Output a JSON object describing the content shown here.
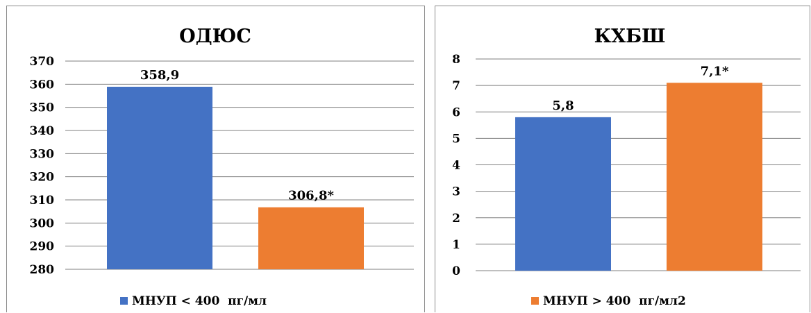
{
  "colors": {
    "blue": "#4472c4",
    "orange": "#ed7d31",
    "grid": "#7f7f7f"
  },
  "chart_data": [
    {
      "type": "bar",
      "title": "ОДЮС",
      "categories": [
        "МНУП < 400  пг/мл",
        "МНУП > 400  пг/мл2"
      ],
      "values": [
        358.9,
        306.8
      ],
      "data_labels": [
        "358,9",
        "306,8*"
      ],
      "colors": [
        "#4472c4",
        "#ed7d31"
      ],
      "ylim": [
        280,
        370
      ],
      "yticks": [
        "280",
        "290",
        "300",
        "310",
        "320",
        "330",
        "340",
        "350",
        "360",
        "370"
      ],
      "grid": true,
      "legend": {
        "position": "bottom",
        "entries": [
          {
            "label": "МНУП < 400  пг/мл",
            "color": "#4472c4"
          }
        ]
      }
    },
    {
      "type": "bar",
      "title": "КХБШ",
      "categories": [
        "МНУП < 400  пг/мл",
        "МНУП > 400  пг/мл2"
      ],
      "values": [
        5.8,
        7.1
      ],
      "data_labels": [
        "5,8",
        "7,1*"
      ],
      "colors": [
        "#4472c4",
        "#ed7d31"
      ],
      "ylim": [
        0,
        8
      ],
      "yticks": [
        "0",
        "1",
        "2",
        "3",
        "4",
        "5",
        "6",
        "7",
        "8"
      ],
      "grid": true,
      "legend": {
        "position": "bottom",
        "entries": [
          {
            "label": "МНУП > 400  пг/мл2",
            "color": "#ed7d31"
          }
        ]
      }
    }
  ]
}
